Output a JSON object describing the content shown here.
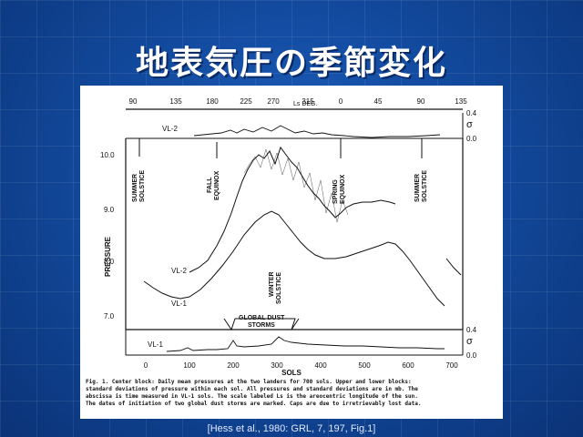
{
  "slide": {
    "title": "地表気圧の季節変化",
    "citation": "[Hess et al., 1980: GRL, 7, 197, Fig.1]"
  },
  "figure": {
    "top_axis": {
      "ticks": [
        "90",
        "135",
        "180",
        "225",
        "270",
        "315",
        "0",
        "45",
        "90",
        "135"
      ],
      "label": "Ls DEG."
    },
    "sigma_label": "σ",
    "upper_block": {
      "series": "VL-2",
      "ticks": [
        "0.4",
        "0.0"
      ]
    },
    "lower_block": {
      "series": "VL-1",
      "ticks": [
        "0.4",
        "0.0"
      ]
    },
    "center": {
      "ylabel": "PRESSURE",
      "yticks": [
        "10.0",
        "9.0",
        "8.0",
        "7.0"
      ],
      "xlabel": "SOLS",
      "xticks": [
        "0",
        "100",
        "200",
        "300",
        "400",
        "500",
        "600",
        "700"
      ],
      "series": [
        "VL-2",
        "VL-1"
      ],
      "annotations": {
        "summer1": [
          "SUMMER",
          "SOLSTICE"
        ],
        "fall": [
          "FALL",
          "EQUINOX"
        ],
        "spring": [
          "SPRING",
          "EQUINOX"
        ],
        "summer2": [
          "SUMMER",
          "SOLSTICE"
        ],
        "winter": [
          "WINTER",
          "SOLSTICE"
        ],
        "storms": [
          "GLOBAL DUST",
          "STORMS"
        ]
      }
    },
    "caption": [
      "Fig. 1.  Center block:  Daily mean pressures at the two landers for 700 sols.  Upper and lower blocks:",
      "standard deviations of pressure within each sol.  All pressures and standard deviations are in mb.  The",
      "abscissa is time measured in VL-1 sols.  The scale labeled Ls is the areocentric longitude of the sun.",
      "The dates of initiation of two global dust storms are marked.  Caps are due to irretrievably lost data."
    ]
  }
}
